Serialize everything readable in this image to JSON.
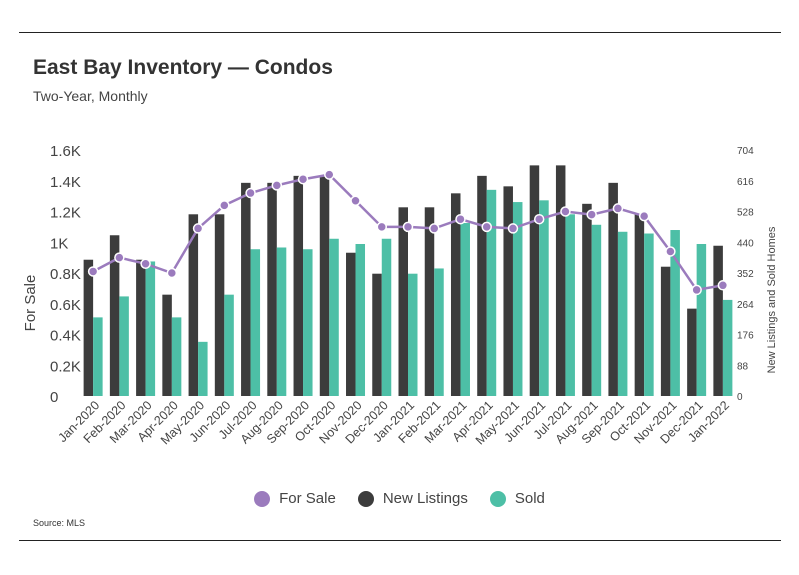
{
  "header": {
    "title": "East Bay Inventory — Condos",
    "subtitle": "Two-Year, Monthly"
  },
  "source": "Source:  MLS",
  "colors": {
    "for_sale": "#9b7bbd",
    "new_listings": "#3c3c3c",
    "sold": "#4dbfa6"
  },
  "chart_data": {
    "type": "bar",
    "title": "East Bay Inventory — Condos",
    "subtitle": "Two-Year, Monthly",
    "categories": [
      "Jan-2020",
      "Feb-2020",
      "Mar-2020",
      "Apr-2020",
      "May-2020",
      "Jun-2020",
      "Jul-2020",
      "Aug-2020",
      "Sep-2020",
      "Oct-2020",
      "Nov-2020",
      "Dec-2020",
      "Jan-2021",
      "Feb-2021",
      "Mar-2021",
      "Apr-2021",
      "May-2021",
      "Jun-2021",
      "Jul-2021",
      "Aug-2021",
      "Sep-2021",
      "Oct-2021",
      "Nov-2021",
      "Dec-2021",
      "Jan-2022"
    ],
    "left_axis": {
      "label": "For Sale",
      "range": [
        0,
        1600
      ],
      "ticks": [
        0,
        200,
        400,
        600,
        800,
        1000,
        1200,
        1400,
        1600
      ],
      "tick_labels": [
        "0",
        "0.2K",
        "0.4K",
        "0.6K",
        "0.8K",
        "1K",
        "1.2K",
        "1.4K",
        "1.6K"
      ]
    },
    "right_axis": {
      "label": "New Listings and Sold Homes",
      "range": [
        0,
        704
      ],
      "ticks": [
        0,
        88,
        176,
        264,
        352,
        440,
        528,
        616,
        704
      ],
      "tick_labels": [
        "0",
        "88",
        "176",
        "264",
        "352",
        "440",
        "528",
        "616",
        "704"
      ]
    },
    "series": [
      {
        "name": "For Sale",
        "type": "line",
        "axis": "left",
        "values": [
          810,
          900,
          860,
          800,
          1090,
          1240,
          1320,
          1370,
          1410,
          1440,
          1270,
          1100,
          1100,
          1090,
          1150,
          1100,
          1090,
          1150,
          1200,
          1180,
          1220,
          1170,
          940,
          690,
          720
        ]
      },
      {
        "name": "New Listings",
        "type": "bar",
        "axis": "right",
        "values": [
          390,
          460,
          390,
          290,
          520,
          520,
          610,
          610,
          630,
          630,
          410,
          350,
          540,
          540,
          580,
          630,
          600,
          660,
          660,
          550,
          610,
          520,
          370,
          250,
          430
        ]
      },
      {
        "name": "Sold",
        "type": "bar",
        "axis": "right",
        "values": [
          225,
          285,
          385,
          225,
          155,
          290,
          420,
          425,
          420,
          450,
          435,
          450,
          350,
          365,
          495,
          590,
          555,
          560,
          520,
          490,
          470,
          465,
          475,
          435,
          275
        ]
      }
    ],
    "legend": {
      "position": "bottom",
      "entries": [
        "For Sale",
        "New Listings",
        "Sold"
      ]
    },
    "grid": false
  }
}
